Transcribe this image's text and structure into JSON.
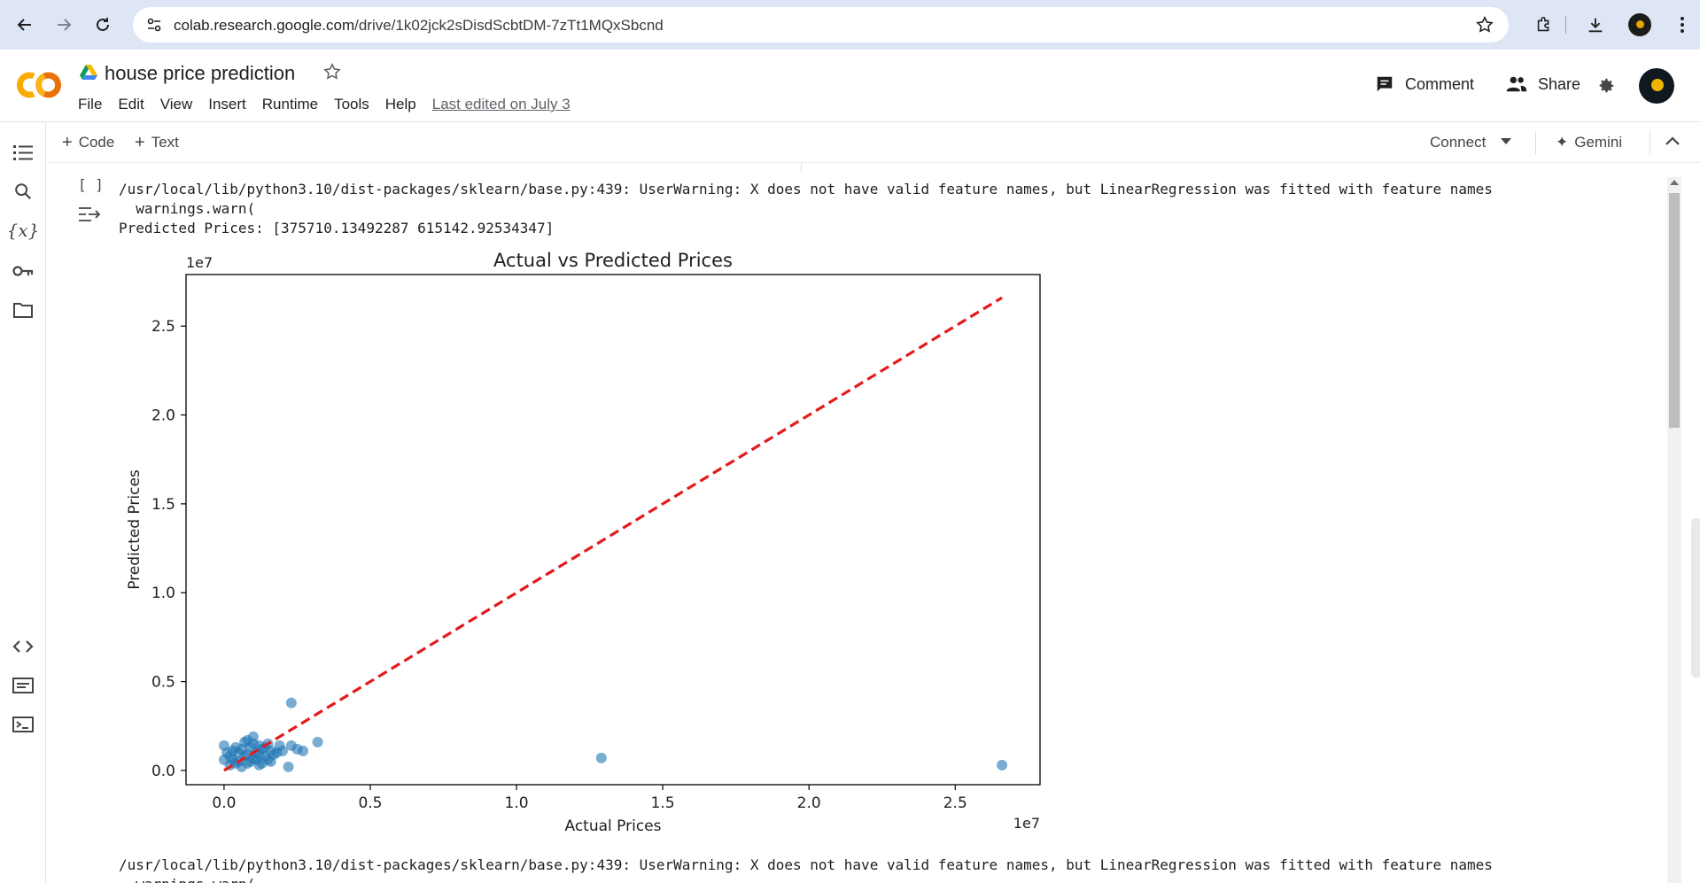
{
  "browser": {
    "url_host": "colab.research.google.com",
    "url_path": "/drive/1k02jck2sDisdScbtDM-7zTt1MQxSbcnd"
  },
  "header": {
    "title": "house price prediction",
    "menu": [
      "File",
      "Edit",
      "View",
      "Insert",
      "Runtime",
      "Tools",
      "Help"
    ],
    "last_edited": "Last edited on July 3",
    "comment_label": "Comment",
    "share_label": "Share"
  },
  "toolbar": {
    "code_label": "Code",
    "text_label": "Text",
    "connect_label": "Connect",
    "gemini_label": "Gemini"
  },
  "cell": {
    "exec_count": "[ ]",
    "output_lines": [
      "/usr/local/lib/python3.10/dist-packages/sklearn/base.py:439: UserWarning: X does not have valid feature names, but LinearRegression was fitted with feature names",
      "  warnings.warn(",
      "Predicted Prices: [375710.13492287 615142.92534347]"
    ],
    "output_lines_after": [
      "/usr/local/lib/python3.10/dist-packages/sklearn/base.py:439: UserWarning: X does not have valid feature names, but LinearRegression was fitted with feature names",
      "  warnings.warn("
    ]
  },
  "chart_data": {
    "type": "scatter",
    "title": "Actual vs Predicted Prices",
    "xlabel": "Actual Prices",
    "ylabel": "Predicted Prices",
    "x_offset_label": "1e7",
    "y_offset_label": "1e7",
    "xlim": [
      -0.13,
      2.79
    ],
    "ylim": [
      -0.08,
      2.79
    ],
    "xticks": [
      0.0,
      0.5,
      1.0,
      1.5,
      2.0,
      2.5
    ],
    "yticks": [
      0.0,
      0.5,
      1.0,
      1.5,
      2.0,
      2.5
    ],
    "x": [
      0.0,
      0.02,
      0.03,
      0.05,
      0.05,
      0.06,
      0.07,
      0.08,
      0.08,
      0.09,
      0.1,
      0.1,
      0.11,
      0.12,
      0.13,
      0.14,
      0.15,
      0.16,
      0.17,
      0.02,
      0.04,
      0.06,
      0.09,
      0.11,
      0.13,
      0.15,
      0.03,
      0.07,
      0.1,
      0.12,
      0.14,
      0.18,
      0.19,
      0.2,
      0.23,
      0.25,
      0.27,
      0.32,
      0.22,
      0.23,
      1.29,
      2.66,
      0.0,
      0.01,
      0.04,
      0.08,
      0.12,
      0.16
    ],
    "y": [
      0.14,
      0.08,
      0.06,
      0.1,
      0.05,
      0.12,
      0.08,
      0.09,
      0.04,
      0.13,
      0.07,
      0.19,
      0.1,
      0.14,
      0.12,
      0.08,
      0.15,
      0.11,
      0.09,
      0.03,
      0.04,
      0.02,
      0.05,
      0.06,
      0.04,
      0.06,
      0.11,
      0.16,
      0.15,
      0.03,
      0.13,
      0.1,
      0.14,
      0.11,
      0.14,
      0.12,
      0.11,
      0.16,
      0.02,
      0.38,
      0.07,
      0.03,
      0.06,
      0.1,
      0.13,
      0.17,
      0.09,
      0.05
    ],
    "point_color": "#1f77b4",
    "line": {
      "x": [
        0.0,
        2.66
      ],
      "y": [
        0.0,
        2.66
      ],
      "color": "#e41a1c",
      "style": "dashed"
    },
    "grid": false
  }
}
